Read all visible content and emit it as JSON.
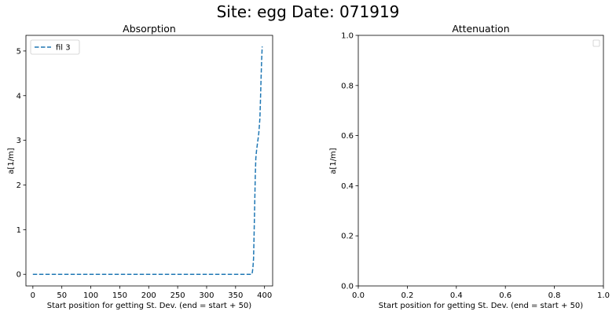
{
  "figure": {
    "suptitle": "Site: egg Date: 071919"
  },
  "chart_data": [
    {
      "type": "line",
      "title": "Absorption",
      "xlabel": "Start position for getting St. Dev. (end = start + 50)",
      "ylabel": "a[1/m]",
      "xlim": [
        -12,
        414
      ],
      "ylim": [
        -0.26,
        5.35
      ],
      "xticks": [
        0,
        50,
        100,
        150,
        200,
        250,
        300,
        350,
        400
      ],
      "yticks": [
        0,
        1,
        2,
        3,
        4,
        5
      ],
      "legend": {
        "position": "top-left",
        "entries": [
          "fil 3"
        ]
      },
      "series": [
        {
          "name": "fil 3",
          "color": "#1f77b4",
          "linestyle": "dashed",
          "x": [
            0,
            50,
            100,
            150,
            200,
            250,
            300,
            350,
            378,
            379,
            380,
            381,
            382,
            383,
            384,
            385,
            386,
            387,
            388,
            389,
            390,
            391,
            392,
            393,
            394,
            395,
            396
          ],
          "y": [
            0,
            0,
            0,
            0,
            0,
            0,
            0,
            0,
            0,
            0.05,
            0.15,
            0.35,
            0.9,
            1.6,
            2.2,
            2.6,
            2.75,
            2.85,
            2.95,
            3.05,
            3.15,
            3.3,
            3.5,
            3.9,
            4.4,
            4.8,
            5.1
          ]
        }
      ]
    },
    {
      "type": "line",
      "title": "Attenuation",
      "xlabel": "Start position for getting St. Dev. (end = start + 50)",
      "ylabel": "a[1/m]",
      "xlim": [
        0,
        1
      ],
      "ylim": [
        0,
        1
      ],
      "xticks": [
        0.0,
        0.2,
        0.4,
        0.6,
        0.8,
        1.0
      ],
      "yticks": [
        0.0,
        0.2,
        0.4,
        0.6,
        0.8,
        1.0
      ],
      "tick_labels_x": [
        "0.0",
        "0.2",
        "0.4",
        "0.6",
        "0.8",
        "1.0"
      ],
      "tick_labels_y": [
        "0.0",
        "0.2",
        "0.4",
        "0.6",
        "0.8",
        "1.0"
      ],
      "legend": {
        "position": "top-right",
        "entries": []
      },
      "series": []
    }
  ]
}
